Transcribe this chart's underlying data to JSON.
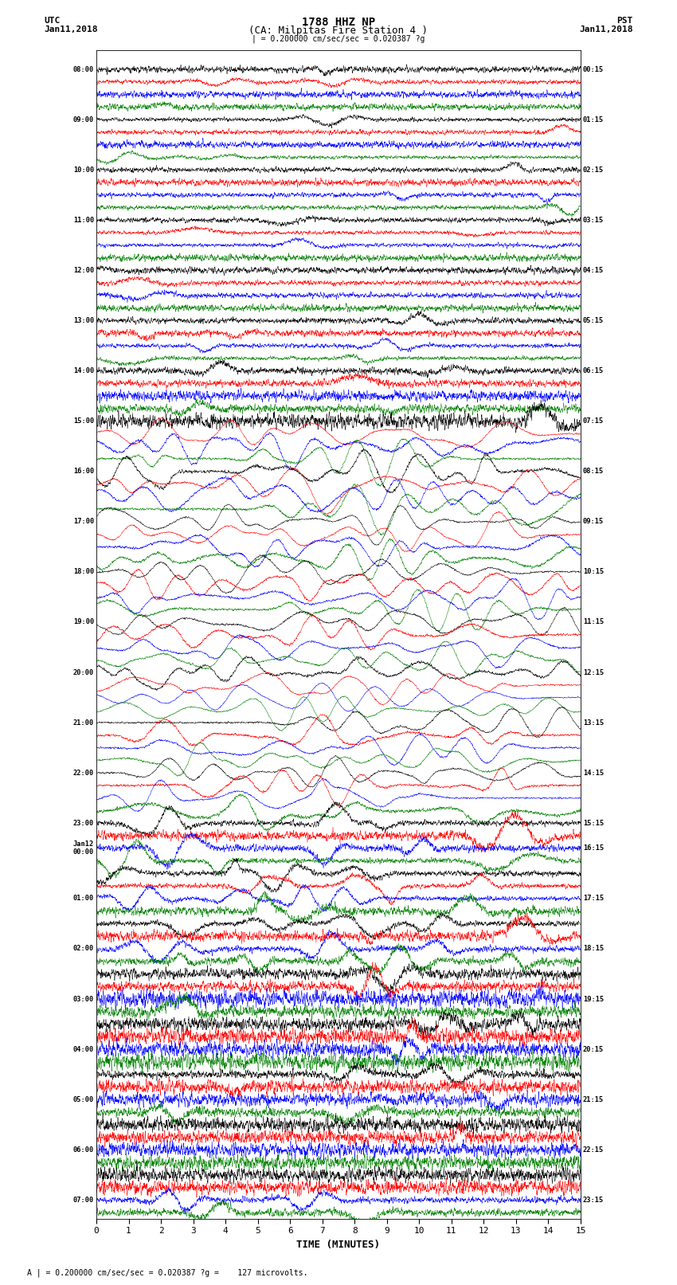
{
  "title_line1": "1788 HHZ NP",
  "title_line2": "(CA: Milpitas Fire Station 4 )",
  "scale_bar_text": "| = 0.200000 cm/sec/sec = 0.020387 ?g",
  "left_label_top": "UTC",
  "left_label_date": "Jan11,2018",
  "right_label_top": "PST",
  "right_label_date": "Jan11,2018",
  "xlabel": "TIME (MINUTES)",
  "bottom_note": "A | = 0.200000 cm/sec/sec = 0.020387 ?g =    127 microvolts.",
  "colors": [
    "black",
    "red",
    "blue",
    "green"
  ],
  "xmin": 0,
  "xmax": 15,
  "num_traces": 92,
  "left_times": [
    "08:00",
    "",
    "",
    "",
    "09:00",
    "",
    "",
    "",
    "10:00",
    "",
    "",
    "",
    "11:00",
    "",
    "",
    "",
    "12:00",
    "",
    "",
    "",
    "13:00",
    "",
    "",
    "",
    "14:00",
    "",
    "",
    "",
    "15:00",
    "",
    "",
    "",
    "16:00",
    "",
    "",
    "",
    "17:00",
    "",
    "",
    "",
    "18:00",
    "",
    "",
    "",
    "19:00",
    "",
    "",
    "",
    "20:00",
    "",
    "",
    "",
    "21:00",
    "",
    "",
    "",
    "22:00",
    "",
    "",
    "",
    "23:00",
    "",
    "Jan12\n00:00",
    "",
    "",
    "",
    "01:00",
    "",
    "",
    "",
    "02:00",
    "",
    "",
    "",
    "03:00",
    "",
    "",
    "",
    "04:00",
    "",
    "",
    "",
    "05:00",
    "",
    "",
    "",
    "06:00",
    "",
    "",
    "",
    "07:00",
    ""
  ],
  "right_times": [
    "00:15",
    "",
    "",
    "",
    "01:15",
    "",
    "",
    "",
    "02:15",
    "",
    "",
    "",
    "03:15",
    "",
    "",
    "",
    "04:15",
    "",
    "",
    "",
    "05:15",
    "",
    "",
    "",
    "06:15",
    "",
    "",
    "",
    "07:15",
    "",
    "",
    "",
    "08:15",
    "",
    "",
    "",
    "09:15",
    "",
    "",
    "",
    "10:15",
    "",
    "",
    "",
    "11:15",
    "",
    "",
    "",
    "12:15",
    "",
    "",
    "",
    "13:15",
    "",
    "",
    "",
    "14:15",
    "",
    "",
    "",
    "15:15",
    "",
    "16:15",
    "",
    "",
    "",
    "17:15",
    "",
    "",
    "",
    "18:15",
    "",
    "",
    "",
    "19:15",
    "",
    "",
    "",
    "20:15",
    "",
    "",
    "",
    "21:15",
    "",
    "",
    "",
    "22:15",
    "",
    "",
    "",
    "23:15",
    ""
  ],
  "bg_color": "white",
  "seed": 42
}
